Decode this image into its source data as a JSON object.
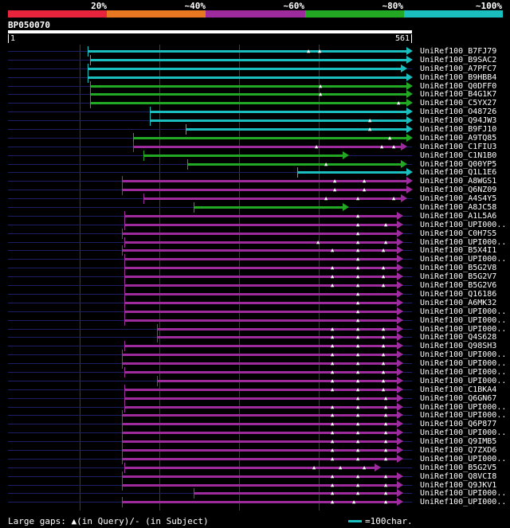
{
  "legend": {
    "labels": [
      "20%",
      "~40%",
      "~60%",
      "~80%",
      "~100%"
    ],
    "colors": [
      "#e8243c",
      "#e87722",
      "#9e2b9e",
      "#22a822",
      "#1abebe"
    ]
  },
  "query": {
    "id": "BP050070",
    "start": "1",
    "end": "561"
  },
  "grid_positions": [
    100,
    200,
    300,
    400
  ],
  "colors": {
    "cyan": "#1abebe",
    "green": "#22a822",
    "magenta": "#9e2b9e",
    "base": "#1c1f66",
    "marker": "#ffffff"
  },
  "hits": [
    {
      "label": "UniRef100_B7FJ79",
      "color": "cyan",
      "start": 110,
      "end": 510,
      "gaps": [
        388,
        402
      ]
    },
    {
      "label": "UniRef100_B9SAC2",
      "color": "cyan",
      "start": 113,
      "end": 510,
      "gaps": []
    },
    {
      "label": "UniRef100_A7PFC7",
      "color": "cyan",
      "start": 110,
      "end": 503,
      "gaps": []
    },
    {
      "label": "UniRef100_B9HBB4",
      "color": "cyan",
      "start": 110,
      "end": 510,
      "gaps": []
    },
    {
      "label": "UniRef100_Q0DFF0",
      "color": "green",
      "start": 113,
      "end": 510,
      "gaps": [
        403
      ]
    },
    {
      "label": "UniRef100_B4G1K7",
      "color": "green",
      "start": 113,
      "end": 510,
      "gaps": [
        403
      ]
    },
    {
      "label": "UniRef100_C5YX27",
      "color": "green",
      "start": 113,
      "end": 510,
      "gaps": [
        501
      ]
    },
    {
      "label": "UniRef100_O48726",
      "color": "cyan",
      "start": 188,
      "end": 510,
      "gaps": []
    },
    {
      "label": "UniRef100_Q94JW3",
      "color": "cyan",
      "start": 188,
      "end": 510,
      "gaps": [
        465
      ]
    },
    {
      "label": "UniRef100_B9FJ10",
      "color": "cyan",
      "start": 233,
      "end": 510,
      "gaps": [
        465
      ]
    },
    {
      "label": "UniRef100_A9TQ85",
      "color": "green",
      "start": 167,
      "end": 510,
      "gaps": [
        490
      ]
    },
    {
      "label": "UniRef100_C1FIU3",
      "color": "magenta",
      "start": 167,
      "end": 503,
      "gaps": [
        398,
        480,
        495
      ]
    },
    {
      "label": "UniRef100_C1N1B0",
      "color": "green",
      "start": 180,
      "end": 430,
      "gaps": []
    },
    {
      "label": "UniRef100_Q00YP5",
      "color": "green",
      "start": 235,
      "end": 503,
      "gaps": [
        410
      ]
    },
    {
      "label": "UniRef100_Q1L1E6",
      "color": "cyan",
      "start": 373,
      "end": 510,
      "gaps": []
    },
    {
      "label": "UniRef100_A8WGS1",
      "color": "magenta",
      "start": 153,
      "end": 510,
      "gaps": [
        421,
        458
      ]
    },
    {
      "label": "UniRef100_Q6NZ09",
      "color": "magenta",
      "start": 153,
      "end": 510,
      "gaps": [
        421,
        458
      ]
    },
    {
      "label": "UniRef100_A4S4Y5",
      "color": "magenta",
      "start": 180,
      "end": 503,
      "gaps": [
        410,
        450,
        495
      ]
    },
    {
      "label": "UniRef100_A8JC58",
      "color": "green",
      "start": 243,
      "end": 430,
      "gaps": []
    },
    {
      "label": "UniRef100_A1L5A6",
      "color": "magenta",
      "start": 156,
      "end": 498,
      "gaps": [
        450
      ]
    },
    {
      "label": "UniRef100_UPI000..",
      "color": "magenta",
      "start": 156,
      "end": 498,
      "gaps": [
        450,
        485
      ]
    },
    {
      "label": "UniRef100_C0H7S5",
      "color": "magenta",
      "start": 153,
      "end": 498,
      "gaps": [
        450
      ]
    },
    {
      "label": "UniRef100_UPI000..",
      "color": "magenta",
      "start": 156,
      "end": 498,
      "gaps": [
        400,
        450,
        485
      ]
    },
    {
      "label": "UniRef100_B5X4I1",
      "color": "magenta",
      "start": 153,
      "end": 498,
      "gaps": [
        418,
        450,
        482
      ]
    },
    {
      "label": "UniRef100_UPI000..",
      "color": "magenta",
      "start": 156,
      "end": 498,
      "gaps": [
        450
      ]
    },
    {
      "label": "UniRef100_B5G2V8",
      "color": "magenta",
      "start": 156,
      "end": 498,
      "gaps": [
        418,
        450,
        482
      ]
    },
    {
      "label": "UniRef100_B5G2V7",
      "color": "magenta",
      "start": 156,
      "end": 498,
      "gaps": [
        418,
        450,
        482
      ]
    },
    {
      "label": "UniRef100_B5G2V6",
      "color": "magenta",
      "start": 156,
      "end": 498,
      "gaps": [
        418,
        450,
        482
      ]
    },
    {
      "label": "UniRef100_Q16186",
      "color": "magenta",
      "start": 156,
      "end": 498,
      "gaps": [
        450
      ]
    },
    {
      "label": "UniRef100_A6MK32",
      "color": "magenta",
      "start": 156,
      "end": 498,
      "gaps": [
        450
      ]
    },
    {
      "label": "UniRef100_UPI000..",
      "color": "magenta",
      "start": 156,
      "end": 498,
      "gaps": [
        450
      ]
    },
    {
      "label": "UniRef100_UPI000..",
      "color": "magenta",
      "start": 156,
      "end": 498,
      "gaps": [
        450
      ]
    },
    {
      "label": "UniRef100_UPI000..",
      "color": "magenta",
      "start": 197,
      "end": 498,
      "gaps": [
        418,
        450,
        482
      ]
    },
    {
      "label": "UniRef100_Q4S628",
      "color": "magenta",
      "start": 197,
      "end": 498,
      "gaps": [
        418,
        450,
        482
      ]
    },
    {
      "label": "UniRef100_Q98SH3",
      "color": "magenta",
      "start": 156,
      "end": 498,
      "gaps": [
        418,
        450,
        482
      ]
    },
    {
      "label": "UniRef100_UPI000..",
      "color": "magenta",
      "start": 153,
      "end": 498,
      "gaps": [
        418,
        450,
        482
      ]
    },
    {
      "label": "UniRef100_UPI000..",
      "color": "magenta",
      "start": 153,
      "end": 498,
      "gaps": [
        418,
        450,
        482
      ]
    },
    {
      "label": "UniRef100_UPI000..",
      "color": "magenta",
      "start": 156,
      "end": 498,
      "gaps": [
        418,
        450,
        482
      ]
    },
    {
      "label": "UniRef100_UPI000..",
      "color": "magenta",
      "start": 197,
      "end": 498,
      "gaps": [
        418,
        450,
        482
      ]
    },
    {
      "label": "UniRef100_C1BKA4",
      "color": "magenta",
      "start": 156,
      "end": 498,
      "gaps": [
        418,
        450,
        482
      ]
    },
    {
      "label": "UniRef100_Q6GN67",
      "color": "magenta",
      "start": 156,
      "end": 498,
      "gaps": [
        450,
        485
      ]
    },
    {
      "label": "UniRef100_UPI000..",
      "color": "magenta",
      "start": 156,
      "end": 498,
      "gaps": [
        418,
        450,
        485
      ]
    },
    {
      "label": "UniRef100_UPI000..",
      "color": "magenta",
      "start": 153,
      "end": 498,
      "gaps": [
        418,
        450,
        485
      ]
    },
    {
      "label": "UniRef100_Q6P877",
      "color": "magenta",
      "start": 153,
      "end": 498,
      "gaps": [
        418,
        450,
        485
      ]
    },
    {
      "label": "UniRef100_UPI000..",
      "color": "magenta",
      "start": 153,
      "end": 498,
      "gaps": [
        418,
        450,
        485
      ]
    },
    {
      "label": "UniRef100_Q9IMB5",
      "color": "magenta",
      "start": 153,
      "end": 498,
      "gaps": [
        418,
        450,
        485
      ]
    },
    {
      "label": "UniRef100_Q7ZXD6",
      "color": "magenta",
      "start": 153,
      "end": 498,
      "gaps": [
        418,
        450,
        485
      ]
    },
    {
      "label": "UniRef100_UPI000..",
      "color": "magenta",
      "start": 153,
      "end": 498,
      "gaps": [
        418,
        450,
        485
      ]
    },
    {
      "label": "UniRef100_B5G2V5",
      "color": "magenta",
      "start": 156,
      "end": 470,
      "gaps": [
        395,
        428,
        458
      ]
    },
    {
      "label": "UniRef100_Q8VCI8",
      "color": "magenta",
      "start": 153,
      "end": 498,
      "gaps": [
        418,
        450,
        485
      ]
    },
    {
      "label": "UniRef100_Q9JKV1",
      "color": "magenta",
      "start": 153,
      "end": 498,
      "gaps": [
        418,
        450,
        485
      ]
    },
    {
      "label": "UniRef100_UPI000..",
      "color": "magenta",
      "start": 243,
      "end": 498,
      "gaps": [
        418,
        450,
        485
      ]
    },
    {
      "label": "UniRef100_UPI000..",
      "color": "magenta",
      "start": 153,
      "end": 498,
      "gaps": [
        418,
        445,
        485
      ]
    }
  ],
  "footer": {
    "legend_text": "Large gaps: ▲(in Query)/- (in Subject)",
    "scale_text": "=100char."
  }
}
